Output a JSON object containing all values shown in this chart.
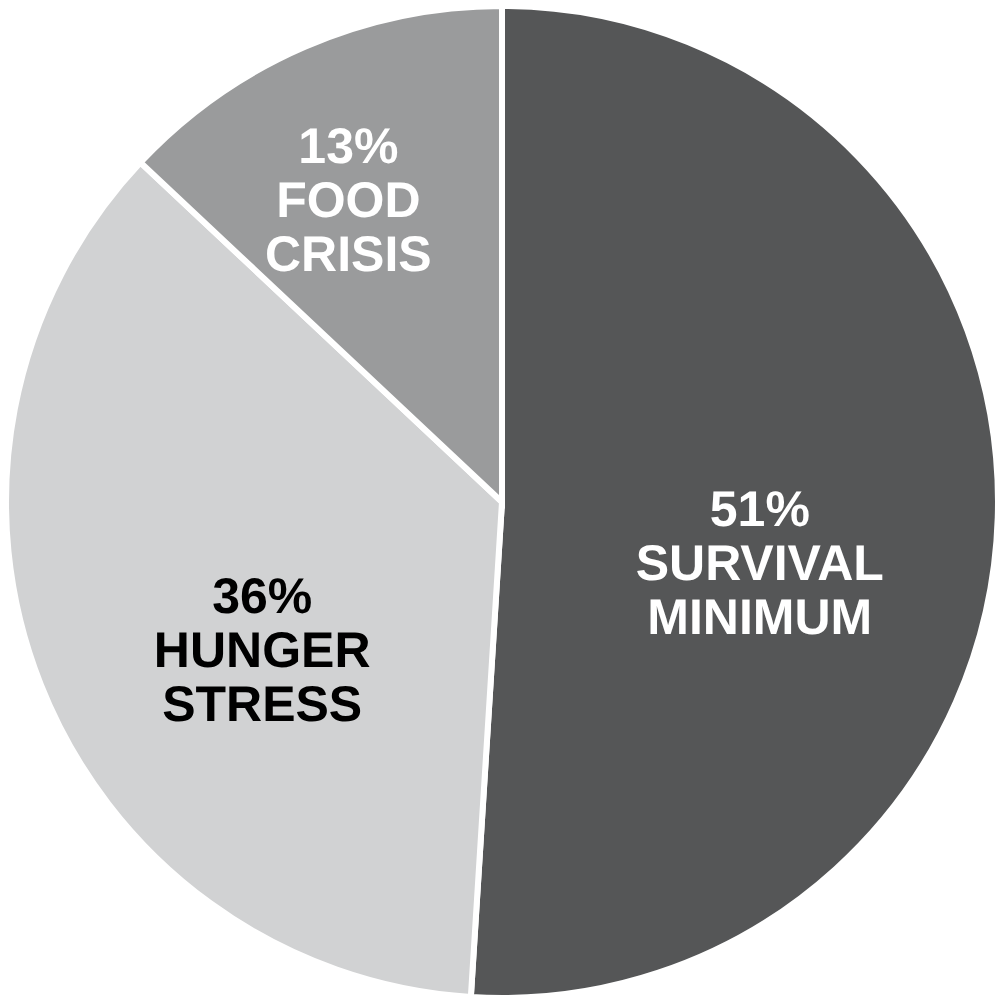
{
  "chart_data": {
    "type": "pie",
    "categories": [
      "SURVIVAL MINIMUM",
      "HUNGER STRESS",
      "FOOD CRISIS"
    ],
    "values": [
      51,
      36,
      13
    ],
    "value_labels": [
      "51%",
      "36%",
      "13%"
    ],
    "colors": [
      "#555657",
      "#d1d2d3",
      "#9a9b9c"
    ]
  }
}
